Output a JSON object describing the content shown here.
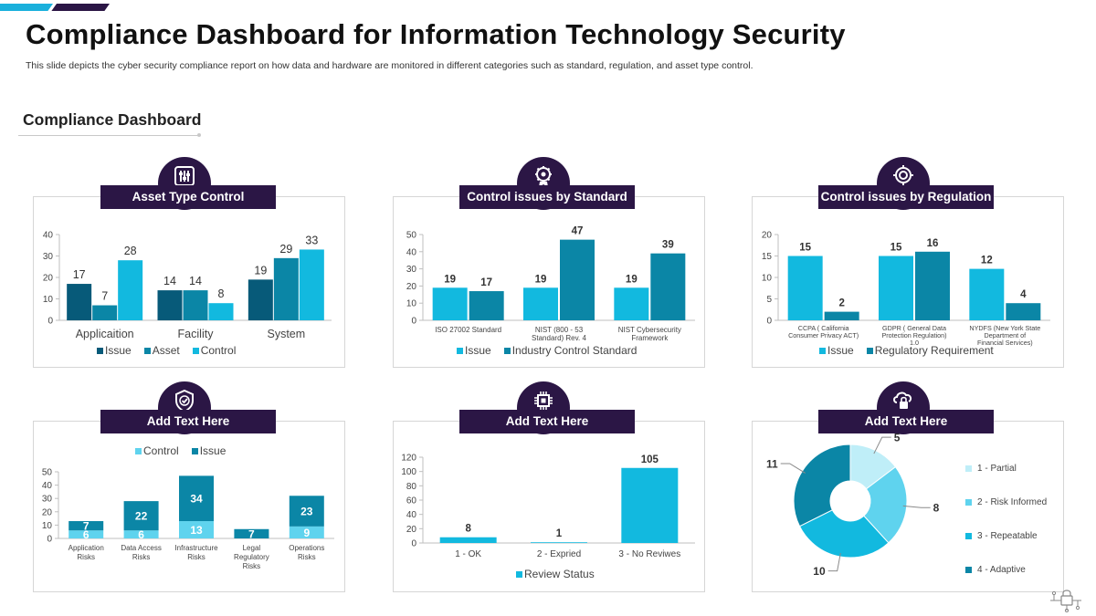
{
  "title": "Compliance Dashboard for Information Technology Security",
  "subtitle": "This slide depicts the cyber security compliance report on how data and hardware are monitored in different categories such as standard, regulation, and asset type control.",
  "section_title": "Compliance Dashboard",
  "panels": {
    "asset": {
      "label": "Asset Type Control",
      "icon": "sliders-icon"
    },
    "standard": {
      "label": "Control issues by Standard",
      "icon": "gear-badge-icon"
    },
    "regulation": {
      "label": "Control issues by Regulation",
      "icon": "regulation-gear-icon"
    },
    "risks": {
      "label": "Add Text Here",
      "icon": "shield-check-icon"
    },
    "review": {
      "label": "Add Text Here",
      "icon": "chip-icon"
    },
    "maturity": {
      "label": "Add Text Here",
      "icon": "cloud-lock-icon"
    }
  },
  "colors": {
    "dark_purple": "#2b1645",
    "navy_teal": "#075a79",
    "mid_teal": "#0b86a6",
    "cyan": "#12b9df",
    "light_cyan": "#5fd3ee",
    "pale_cyan": "#bfeef8"
  },
  "chart_data": [
    {
      "id": "asset",
      "type": "bar",
      "categories": [
        "Applicaition",
        "Facility",
        "System"
      ],
      "series": [
        {
          "name": "Issue",
          "values": [
            17,
            14,
            19
          ],
          "color": "#075a79"
        },
        {
          "name": "Asset",
          "values": [
            7,
            14,
            29
          ],
          "color": "#0b86a6"
        },
        {
          "name": "Control",
          "values": [
            28,
            8,
            33
          ],
          "color": "#12b9df"
        }
      ],
      "yticks": [
        0,
        10,
        20,
        30,
        40
      ],
      "ylim": [
        0,
        40
      ],
      "legend": "bottom"
    },
    {
      "id": "standard",
      "type": "bar",
      "categories": [
        "ISO 27002 Standard",
        "NIST (800 - 53 Standard) Rev. 4",
        "NIST Cybersecurity Framework"
      ],
      "series": [
        {
          "name": "Issue",
          "values": [
            19,
            19,
            19
          ],
          "color": "#12b9df"
        },
        {
          "name": "Industry Control Standard",
          "values": [
            17,
            47,
            39
          ],
          "color": "#0b86a6"
        }
      ],
      "yticks": [
        0,
        10,
        20,
        30,
        40,
        50
      ],
      "ylim": [
        0,
        50
      ],
      "legend": "bottom"
    },
    {
      "id": "regulation",
      "type": "bar",
      "categories": [
        "CCPA ( California Consumer Privacy ACT)",
        "GDPR ( General Data Protection Regulation) 1.0",
        "NYDFS (New York State Department of Financial Services)"
      ],
      "series": [
        {
          "name": "Issue",
          "values": [
            15,
            15,
            12
          ],
          "color": "#12b9df"
        },
        {
          "name": "Regulatory Requirement",
          "values": [
            2,
            16,
            4
          ],
          "color": "#0b86a6"
        }
      ],
      "yticks": [
        0,
        5,
        10,
        15,
        20
      ],
      "ylim": [
        0,
        20
      ],
      "legend": "bottom"
    },
    {
      "id": "risks",
      "type": "stacked_bar",
      "categories": [
        "Application Risks",
        "Data Access Risks",
        "Infrastructure Risks",
        "Legal Regulatory Risks",
        "Operations Risks"
      ],
      "series": [
        {
          "name": "Control",
          "values": [
            6,
            6,
            13,
            0,
            9
          ],
          "color": "#5fd3ee"
        },
        {
          "name": "Issue",
          "values": [
            7,
            22,
            34,
            7,
            23
          ],
          "color": "#0b86a6"
        }
      ],
      "yticks": [
        0,
        10,
        20,
        30,
        40,
        50
      ],
      "ylim": [
        0,
        50
      ],
      "legend": "top"
    },
    {
      "id": "review",
      "type": "bar",
      "categories": [
        "1 - OK",
        "2 - Expried",
        "3 - No Reviwes"
      ],
      "series": [
        {
          "name": "Review Status",
          "values": [
            8,
            1,
            105
          ],
          "color": "#12b9df"
        }
      ],
      "yticks": [
        0,
        20,
        40,
        60,
        80,
        100,
        120
      ],
      "ylim": [
        0,
        120
      ],
      "legend": "bottom"
    },
    {
      "id": "maturity",
      "type": "pie",
      "labels": [
        "1 - Partial",
        "2 - Risk Informed",
        "3 - Repeatable",
        "4 - Adaptive"
      ],
      "values": [
        5,
        8,
        10,
        11
      ],
      "colors": [
        "#bfeef8",
        "#5fd3ee",
        "#12b9df",
        "#0b86a6"
      ],
      "donut": true,
      "legend": "right"
    }
  ]
}
